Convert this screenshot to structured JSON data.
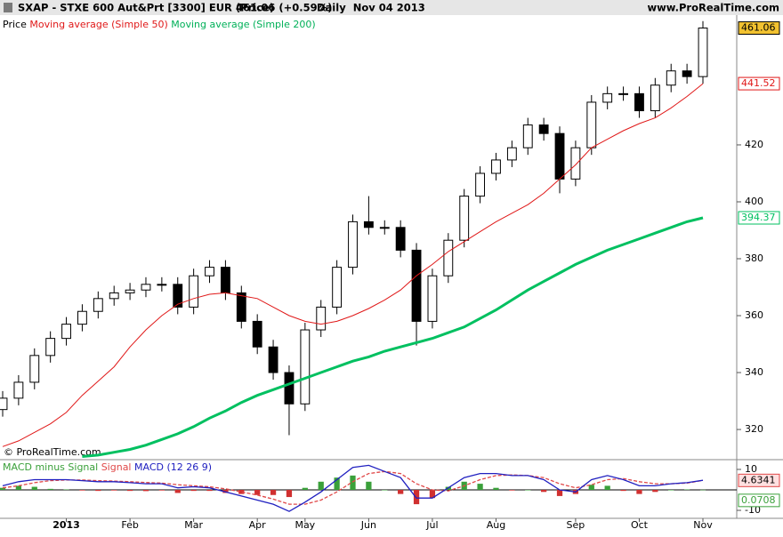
{
  "header": {
    "symbol": "SXAP - STXE 600 Aut&Prt [3300] EUR (Price)",
    "quote": "461.06 (+0.59%)",
    "period": "Daily  Nov 04 2013",
    "site": "www.ProRealTime.com"
  },
  "chart_data": [
    {
      "type": "candlestick",
      "watermark": "© ProRealTime.com",
      "categories": [
        null,
        null,
        null,
        null,
        "2013",
        null,
        null,
        null,
        "Feb",
        null,
        null,
        null,
        "Mar",
        null,
        null,
        null,
        "Apr",
        null,
        null,
        "May",
        null,
        null,
        null,
        "Jun",
        null,
        null,
        null,
        "Jul",
        null,
        null,
        null,
        "Aug",
        null,
        null,
        null,
        null,
        "Sep",
        null,
        null,
        null,
        "Oct",
        null,
        null,
        null,
        "Nov"
      ],
      "price": {
        "name": "Price",
        "up_color": "#ffffff",
        "down_color": "#000000",
        "edge_color": "#000000",
        "open": [
          327,
          331,
          336.6,
          346,
          352,
          357,
          361.5,
          366,
          368,
          369,
          371,
          371,
          363,
          374,
          377,
          368,
          358,
          349,
          340,
          329,
          355,
          363,
          377,
          393,
          391,
          391,
          383,
          358,
          374,
          386.5,
          402,
          410,
          414.7,
          419,
          427,
          424,
          408,
          419,
          435,
          438,
          438,
          432,
          441,
          446,
          444
        ],
        "high": [
          333.5,
          339.1,
          348.5,
          354.5,
          359.5,
          364,
          368.5,
          370.5,
          371.5,
          373.5,
          373.5,
          373.5,
          376.5,
          379.5,
          379.5,
          370.5,
          360.5,
          351.5,
          342.5,
          357.5,
          365.5,
          379.5,
          395.5,
          402,
          393.5,
          393.5,
          385.5,
          376.5,
          389,
          404.5,
          412.5,
          417.2,
          421.5,
          429.5,
          429.5,
          426.5,
          421.5,
          437.5,
          440.5,
          440.5,
          440.5,
          443.5,
          448.5,
          448.5,
          463.5
        ],
        "low": [
          324.5,
          328.5,
          334.1,
          343.5,
          349.5,
          354.5,
          359,
          363.5,
          365.5,
          366.5,
          368.5,
          360.5,
          360.5,
          371.5,
          365.5,
          355.5,
          346.5,
          337.5,
          318,
          326.5,
          352.5,
          360.5,
          374.5,
          388.5,
          388.5,
          380.5,
          349.5,
          355.5,
          371.5,
          384,
          399.5,
          407.5,
          412.2,
          416.5,
          421.5,
          403,
          405.5,
          416.5,
          432.5,
          435.5,
          429.5,
          429.5,
          438.5,
          441.5,
          441.5
        ],
        "close": [
          331,
          336.6,
          346,
          352,
          357,
          361.5,
          366,
          368,
          369,
          371,
          371,
          363,
          374,
          377,
          368,
          358,
          349,
          340,
          329,
          355,
          363,
          377,
          393,
          391,
          391,
          383,
          358,
          374,
          386.5,
          402,
          410,
          414.7,
          419,
          427,
          424,
          408,
          419,
          435,
          438,
          438,
          432,
          441,
          446,
          444,
          461.06
        ],
        "label_color": "#f2c230"
      },
      "series": [
        {
          "name": "Moving average (Simple 50)",
          "color": "#e01818",
          "width": 1,
          "values": [
            314,
            316,
            319,
            322,
            326,
            332,
            337,
            342,
            349,
            355,
            360,
            364,
            366,
            367.5,
            368,
            367,
            366,
            363,
            360,
            358,
            357,
            358,
            360,
            362.5,
            365.5,
            369,
            374,
            378,
            382.5,
            386,
            389.5,
            393,
            396,
            399,
            403,
            408,
            413,
            419,
            422,
            425,
            427.5,
            429.5,
            433,
            437,
            441.52
          ]
        },
        {
          "name": "Moving average (Simple 200)",
          "color": "#00c060",
          "width": 3,
          "values": [
            null,
            null,
            null,
            null,
            null,
            310.5,
            311,
            312,
            313,
            314.5,
            316.5,
            318.5,
            321,
            324,
            326.5,
            329.5,
            332,
            334,
            336,
            338,
            340,
            342,
            344,
            345.5,
            347.5,
            349,
            350.5,
            352,
            354,
            356,
            359,
            362,
            365.5,
            369,
            372,
            375,
            378,
            380.5,
            383,
            385,
            387,
            389,
            391,
            393,
            394.37
          ]
        }
      ],
      "ylim": [
        309.4,
        465.6
      ],
      "yticks": [
        320,
        340,
        360,
        380,
        400,
        420
      ]
    },
    {
      "type": "macd",
      "histogram": {
        "name": "MACD minus Signal",
        "color": "#3aa03a",
        "neg_color": "#d03030",
        "values": [
          1,
          2,
          1.5,
          0.5,
          0.2,
          -0.3,
          -0.5,
          -0.3,
          -0.5,
          -0.6,
          -0.3,
          -1.5,
          -0.5,
          -0.5,
          -1.5,
          -2,
          -2.5,
          -2.5,
          -3.5,
          1,
          4,
          6,
          7,
          4,
          0,
          -2,
          -7,
          -4,
          1.5,
          4,
          3,
          1,
          -0.3,
          0,
          -1,
          -3,
          -2,
          2.5,
          2,
          -0.5,
          -2,
          -1,
          0,
          0.2,
          0.0708
        ]
      },
      "series": [
        {
          "name": "Signal",
          "color": "#e04848",
          "values": [
            1,
            2,
            3.5,
            4.5,
            4.8,
            4.8,
            4.5,
            4.3,
            4,
            3.6,
            3.3,
            2.5,
            2,
            1.5,
            0.5,
            -1,
            -2.5,
            -4.5,
            -7,
            -7,
            -5,
            -1,
            4,
            8,
            9,
            8,
            3,
            0,
            -0.5,
            2,
            5,
            7,
            7.3,
            7,
            6,
            3,
            1,
            2.5,
            5,
            5.5,
            4,
            3,
            3,
            3.3,
            4.6341
          ]
        },
        {
          "name": "MACD (12 26 9)",
          "color": "#2020c0",
          "values": [
            2,
            4,
            5,
            5,
            5,
            4.5,
            4,
            4,
            3.5,
            3,
            3,
            1,
            1.5,
            1,
            -1,
            -3,
            -5,
            -7,
            -10.5,
            -6,
            -1,
            5,
            11,
            12,
            9,
            6,
            -4,
            -4,
            1,
            6,
            8,
            8,
            7,
            7,
            5,
            0,
            -1,
            5,
            7,
            5,
            2,
            2,
            3,
            3.5,
            4.7049
          ]
        }
      ],
      "ylim": [
        -13.9,
        13.9
      ],
      "yticks": [
        -10,
        10
      ]
    }
  ]
}
